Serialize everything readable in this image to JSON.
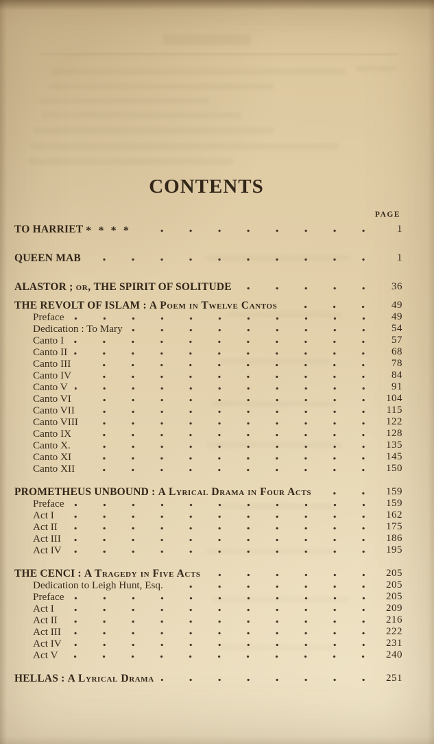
{
  "page": {
    "title": "CONTENTS",
    "page_column_label": "PAGE"
  },
  "colors": {
    "paper": "#e2d0aa",
    "ink": "#362a1b"
  },
  "toc": [
    {
      "title": [
        {
          "t": "TO HARRIET ",
          "s": "c"
        },
        {
          "t": "* * * *",
          "s": "st"
        }
      ],
      "page": "1",
      "items": []
    },
    {
      "title": [
        {
          "t": "QUEEN MAB",
          "s": "c"
        }
      ],
      "page": "1",
      "items": []
    },
    {
      "title": [
        {
          "t": "ALASTOR ; ",
          "s": "c"
        },
        {
          "t": "or,",
          "s": "sc"
        },
        {
          "t": " THE SPIRIT OF SOLITUDE",
          "s": "c"
        }
      ],
      "page": "36",
      "items": []
    },
    {
      "title": [
        {
          "t": "THE REVOLT OF ISLAM : ",
          "s": "c"
        },
        {
          "t": "A Poem in Twelve Cantos",
          "s": "sc"
        }
      ],
      "page": "49",
      "items": [
        {
          "label": "Preface",
          "page": "49"
        },
        {
          "label": "Dedication : To Mary",
          "page": "54"
        },
        {
          "label": "Canto I",
          "page": "57"
        },
        {
          "label": "Canto II",
          "page": "68"
        },
        {
          "label": "Canto III",
          "page": "78"
        },
        {
          "label": "Canto IV",
          "page": "84"
        },
        {
          "label": "Canto V",
          "page": "91"
        },
        {
          "label": "Canto VI",
          "page": "104"
        },
        {
          "label": "Canto VII",
          "page": "115"
        },
        {
          "label": "Canto VIII",
          "page": "122"
        },
        {
          "label": "Canto IX",
          "page": "128"
        },
        {
          "label": "Canto X.",
          "page": "135"
        },
        {
          "label": "Canto XI",
          "page": "145"
        },
        {
          "label": "Canto XII",
          "page": "150"
        }
      ]
    },
    {
      "title": [
        {
          "t": "PROMETHEUS UNBOUND : ",
          "s": "c"
        },
        {
          "t": "A Lyrical Drama in Four Acts",
          "s": "sc"
        }
      ],
      "page": "159",
      "items": [
        {
          "label": "Preface",
          "page": "159"
        },
        {
          "label": "Act I",
          "page": "162"
        },
        {
          "label": "Act II",
          "page": "175"
        },
        {
          "label": "Act III",
          "page": "186"
        },
        {
          "label": "Act IV",
          "page": "195"
        }
      ]
    },
    {
      "title": [
        {
          "t": "THE CENCI : ",
          "s": "c"
        },
        {
          "t": "A Tragedy in Five Acts",
          "s": "sc"
        }
      ],
      "page": "205",
      "items": [
        {
          "label": "Dedication to Leigh Hunt, Esq.",
          "page": "205"
        },
        {
          "label": "Preface",
          "page": "205"
        },
        {
          "label": "Act I",
          "page": "209"
        },
        {
          "label": "Act II",
          "page": "216"
        },
        {
          "label": "Act III",
          "page": "222"
        },
        {
          "label": "Act IV",
          "page": "231"
        },
        {
          "label": "Act V",
          "page": "240"
        }
      ]
    },
    {
      "title": [
        {
          "t": "HELLAS : ",
          "s": "c"
        },
        {
          "t": "A Lyrical Drama",
          "s": "sc"
        }
      ],
      "page": "251",
      "items": []
    }
  ]
}
